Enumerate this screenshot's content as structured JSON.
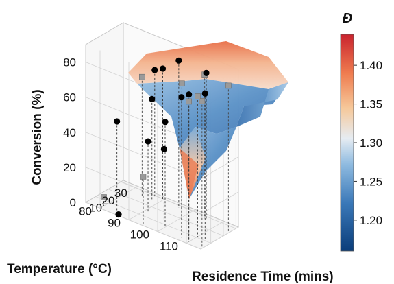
{
  "chart_data": {
    "type": "surface3d",
    "axes": {
      "x": {
        "label": "Residence Time (mins)",
        "range": [
          2,
          32
        ],
        "ticks": [
          10,
          20,
          30
        ]
      },
      "y": {
        "label": "Temperature (°C)",
        "range": [
          75,
          115
        ],
        "ticks": [
          80,
          90,
          100,
          110
        ]
      },
      "z": {
        "label": "Conversion (%)",
        "range": [
          0,
          90
        ],
        "ticks": [
          0,
          20,
          40,
          60,
          80
        ]
      }
    },
    "colorbar": {
      "title": "Đ",
      "range": [
        1.16,
        1.44
      ],
      "ticks": [
        "1.20",
        "1.25",
        "1.30",
        "1.35",
        "1.40"
      ],
      "colors": [
        "#0a3d7a",
        "#3a78b8",
        "#8fbbe0",
        "#e6ecf2",
        "#f6c89a",
        "#ef7c4f",
        "#c9232e"
      ]
    },
    "grid": true,
    "black_points": [
      {
        "time": 4,
        "temp": 110,
        "conv": 84
      },
      {
        "time": 5,
        "temp": 107,
        "conv": 80
      },
      {
        "time": 10,
        "temp": 113,
        "conv": 84
      },
      {
        "time": 27,
        "temp": 106,
        "conv": 84
      },
      {
        "time": 28,
        "temp": 96,
        "conv": 84
      },
      {
        "time": 29,
        "temp": 90,
        "conv": 75
      },
      {
        "time": 29.5,
        "temp": 87,
        "conv": 72
      },
      {
        "time": 8,
        "temp": 100,
        "conv": 60
      },
      {
        "time": 25,
        "temp": 88,
        "conv": 58
      },
      {
        "time": 4,
        "temp": 85,
        "conv": 52
      },
      {
        "time": 14,
        "temp": 97,
        "conv": 40
      },
      {
        "time": 15,
        "temp": 91,
        "conv": 40
      },
      {
        "time": 3,
        "temp": 86,
        "conv": 0
      }
    ],
    "grey_points": [
      {
        "time": 3,
        "temp": 115,
        "conv": 84
      },
      {
        "time": 4,
        "temp": 110,
        "conv": 80
      },
      {
        "time": 24,
        "temp": 115,
        "conv": 84
      },
      {
        "time": 11,
        "temp": 110,
        "conv": 80
      },
      {
        "time": 19,
        "temp": 101,
        "conv": 78
      },
      {
        "time": 28,
        "temp": 105,
        "conv": 82
      },
      {
        "time": 24,
        "temp": 85,
        "conv": 69
      },
      {
        "time": 2,
        "temp": 95,
        "conv": 28
      },
      {
        "time": 5,
        "temp": 80,
        "conv": 5
      }
    ]
  }
}
